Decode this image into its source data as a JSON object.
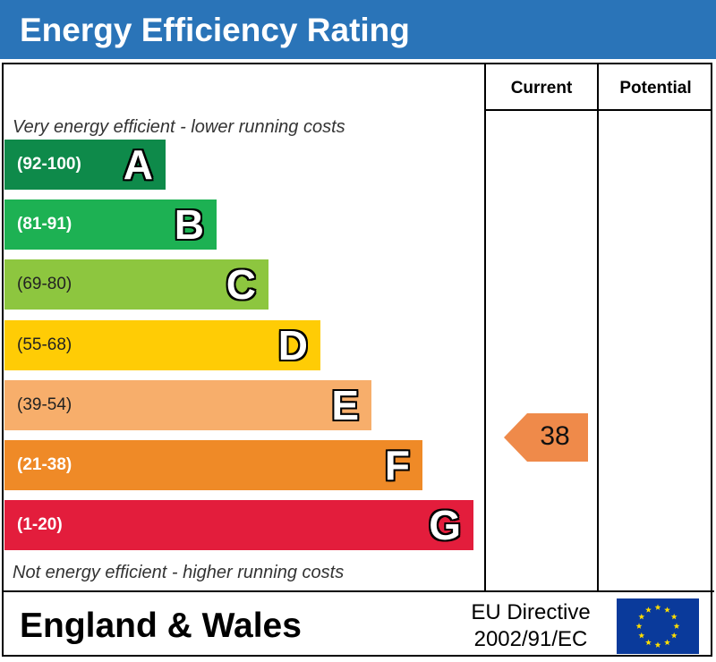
{
  "title": "Energy Efficiency Rating",
  "columns": {
    "current": "Current",
    "potential": "Potential"
  },
  "top_note": "Very energy efficient - lower running costs",
  "bottom_note": "Not energy efficient - higher running costs",
  "bands": [
    {
      "letter": "A",
      "range": "(92-100)",
      "color": "#0e8a4a"
    },
    {
      "letter": "B",
      "range": "(81-91)",
      "color": "#1db153"
    },
    {
      "letter": "C",
      "range": "(69-80)",
      "color": "#8dc63f"
    },
    {
      "letter": "D",
      "range": "(55-68)",
      "color": "#ffcc05"
    },
    {
      "letter": "E",
      "range": "(39-54)",
      "color": "#f7ae6b"
    },
    {
      "letter": "F",
      "range": "(21-38)",
      "color": "#ef8a27"
    },
    {
      "letter": "G",
      "range": "(1-20)",
      "color": "#e31d3c"
    }
  ],
  "current_rating": {
    "value": "38",
    "band": "F",
    "color": "#ef8a4a"
  },
  "footer": {
    "region": "England & Wales",
    "directive_line1": "EU Directive",
    "directive_line2": "2002/91/EC",
    "flag_colors": {
      "background": "#0a3a9b",
      "stars": "#ffde00"
    }
  }
}
